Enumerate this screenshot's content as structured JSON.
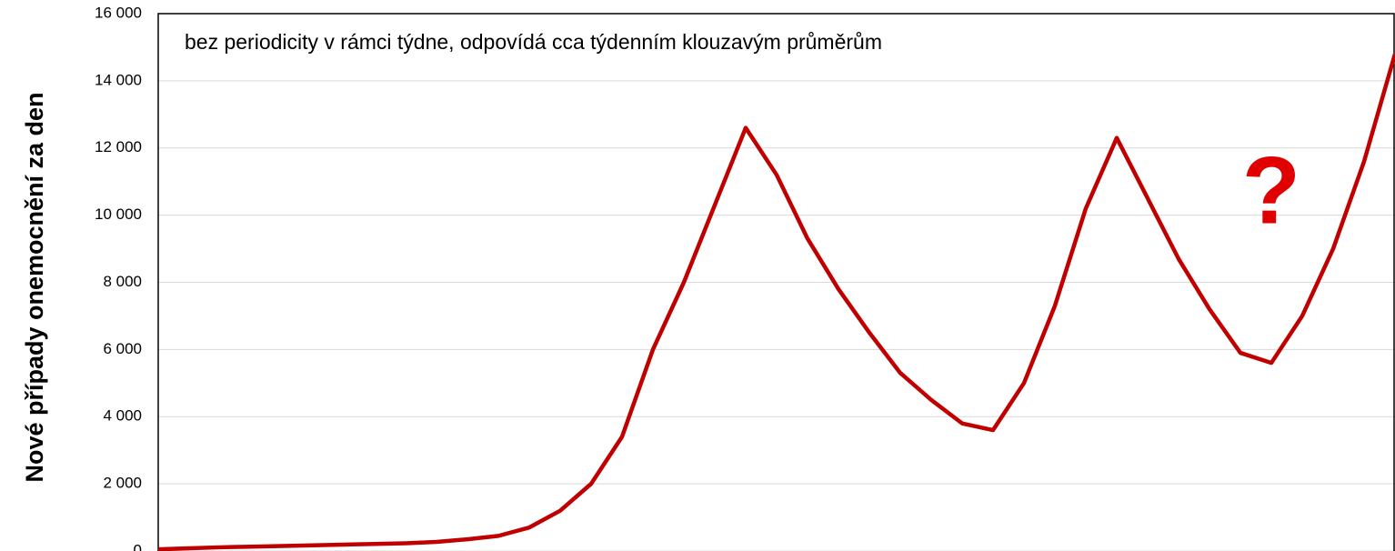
{
  "chart_data": {
    "type": "line",
    "ylabel": "Nové případy onemocnění za den",
    "annotations": [
      "bez periodicity v rámci týdne, odpovídá cca týdenním klouzavým průměrům",
      "?"
    ],
    "annotation_color": "#e00000",
    "categories": [
      null,
      null,
      null,
      null,
      null,
      null,
      null,
      null,
      null,
      null,
      null,
      null,
      null,
      null,
      null,
      null,
      null,
      null,
      null,
      null,
      null,
      null,
      null,
      null,
      null,
      null,
      null,
      null,
      null,
      null,
      null,
      null,
      null,
      null,
      null,
      null,
      null,
      null,
      null,
      null,
      null
    ],
    "series": [
      {
        "color": "#c00000",
        "values": [
          50,
          80,
          110,
          130,
          150,
          170,
          190,
          210,
          230,
          270,
          350,
          450,
          700,
          1200,
          2000,
          3400,
          6000,
          8000,
          10300,
          12600,
          11200,
          9300,
          7800,
          6500,
          5300,
          4500,
          3800,
          3600,
          5000,
          7300,
          10200,
          12300,
          10500,
          8700,
          7200,
          5900,
          5600,
          7000,
          9000,
          11600,
          14800
        ]
      }
    ],
    "ylim": [
      0,
      16000
    ],
    "yticks": [
      0,
      {
        "value": 2000,
        "label": "2 000"
      },
      {
        "value": 4000,
        "label": "4 000"
      },
      {
        "value": 6000,
        "label": "6 000"
      },
      {
        "value": 8000,
        "label": "8 000"
      },
      {
        "value": 10000,
        "label": "10 000"
      },
      {
        "value": 12000,
        "label": "12 000"
      },
      {
        "value": 14000,
        "label": "14 000"
      },
      {
        "value": 16000,
        "label": "16 000"
      }
    ],
    "grid": true
  }
}
